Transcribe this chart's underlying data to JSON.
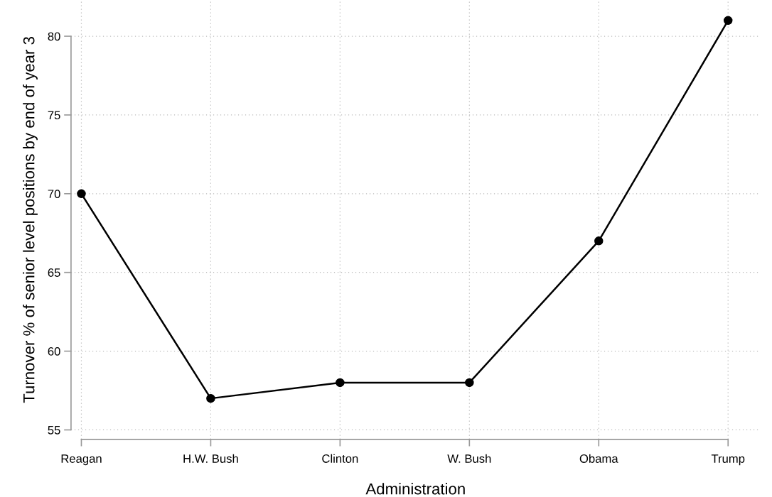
{
  "chart_data": {
    "type": "line",
    "xlabel": "Administration",
    "ylabel": "Turnover % of senior level positions by end of year 3",
    "categories": [
      "Reagan",
      "H.W. Bush",
      "Clinton",
      "W. Bush",
      "Obama",
      "Trump"
    ],
    "series": [
      {
        "color": "#000000",
        "values": [
          70,
          57,
          58,
          58,
          67,
          81
        ]
      }
    ],
    "ylim": [
      54.4,
      82.3
    ],
    "yticks": [
      55,
      60,
      65,
      70,
      75,
      80
    ],
    "grid": true,
    "marker": "circle",
    "line_style": "solid"
  }
}
